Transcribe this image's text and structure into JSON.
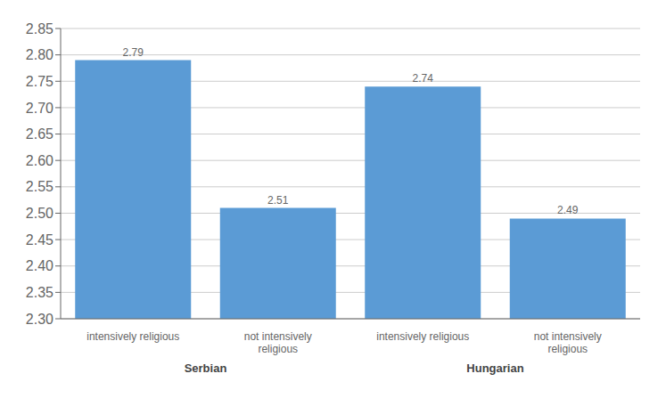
{
  "chart_data": {
    "type": "bar",
    "categories": [
      "intensively religious",
      "not intensively\nreligious"
    ],
    "series": [
      {
        "name": "Serbian",
        "values": [
          2.79,
          2.51
        ]
      },
      {
        "name": "Hungarian",
        "values": [
          2.74,
          2.49
        ]
      }
    ],
    "color": "#5B9BD5",
    "ylim": [
      2.3,
      2.85
    ],
    "yticks": [
      {
        "value": 2.3,
        "label": "2.30"
      },
      2.35,
      {
        "value": 2.4,
        "label": "2.40"
      },
      2.45,
      {
        "value": 2.5,
        "label": "2.50"
      },
      2.55,
      {
        "value": 2.6,
        "label": "2.60"
      },
      2.65,
      {
        "value": 2.7,
        "label": "2.70"
      },
      2.75,
      {
        "value": 2.8,
        "label": "2.80"
      },
      2.85
    ],
    "grid": true,
    "data_labels": true
  }
}
